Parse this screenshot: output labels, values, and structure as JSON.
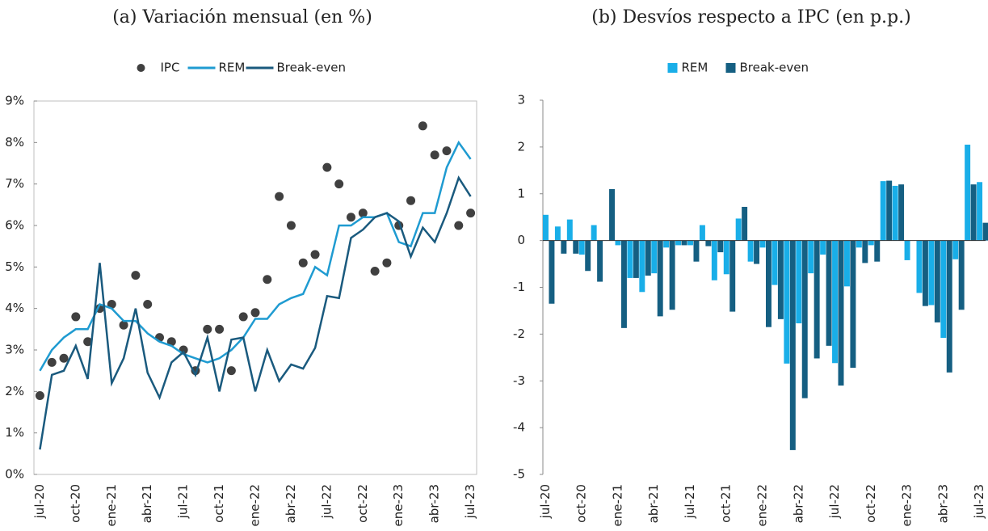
{
  "chart_data": [
    {
      "type": "line",
      "title": "(a) Variación mensual (en %)",
      "categories": [
        "jul-20",
        null,
        null,
        "oct-20",
        null,
        null,
        "ene-21",
        null,
        null,
        "abr-21",
        null,
        null,
        "jul-21",
        null,
        null,
        "oct-21",
        null,
        null,
        "ene-22",
        null,
        null,
        "abr-22",
        null,
        null,
        "jul-22",
        null,
        null,
        "oct-22",
        null,
        null,
        "ene-23",
        null,
        null,
        "abr-23",
        null,
        null,
        "jul-23"
      ],
      "series": [
        {
          "name": "IPC",
          "style": "scatter",
          "color": "#404040",
          "values": [
            1.9,
            2.7,
            2.8,
            3.8,
            3.2,
            4.0,
            4.1,
            3.6,
            4.8,
            4.1,
            3.3,
            3.2,
            3.0,
            2.5,
            3.5,
            3.5,
            2.5,
            3.8,
            3.9,
            4.7,
            6.7,
            6.0,
            5.1,
            5.3,
            7.4,
            7.0,
            6.2,
            6.3,
            4.9,
            5.1,
            6.0,
            6.6,
            8.4,
            7.7,
            7.8,
            6.0,
            6.3
          ]
        },
        {
          "name": "REM",
          "style": "line",
          "color": "#1f9bd1",
          "values": [
            2.5,
            3.0,
            3.3,
            3.5,
            3.5,
            4.1,
            4.0,
            3.7,
            3.7,
            3.4,
            3.2,
            3.1,
            2.9,
            2.8,
            2.7,
            2.8,
            3.0,
            3.3,
            3.75,
            3.75,
            4.1,
            4.25,
            4.35,
            5.0,
            4.8,
            6.0,
            6.0,
            6.2,
            6.2,
            6.3,
            5.6,
            5.5,
            6.3,
            6.3,
            7.4,
            8.0,
            7.6
          ]
        },
        {
          "name": "Break-even",
          "style": "line",
          "color": "#1a5a7e",
          "values": [
            0.6,
            2.4,
            2.5,
            3.1,
            2.3,
            5.1,
            2.2,
            2.8,
            4.0,
            2.45,
            1.85,
            2.7,
            2.95,
            2.4,
            3.3,
            2.0,
            3.25,
            3.3,
            2.0,
            3.0,
            2.25,
            2.65,
            2.55,
            3.05,
            4.3,
            4.25,
            5.7,
            5.9,
            6.2,
            6.3,
            6.1,
            5.25,
            5.95,
            5.6,
            6.3,
            7.15,
            6.7
          ]
        }
      ],
      "ylim": [
        0,
        9
      ],
      "yticks": [
        {
          "value": 0,
          "label": "0%"
        },
        {
          "value": 1,
          "label": "1%"
        },
        {
          "value": 2,
          "label": "2%"
        },
        {
          "value": 3,
          "label": "3%"
        },
        {
          "value": 4,
          "label": "4%"
        },
        {
          "value": 5,
          "label": "5%"
        },
        {
          "value": 6,
          "label": "6%"
        },
        {
          "value": 7,
          "label": "7%"
        },
        {
          "value": 8,
          "label": "8%"
        },
        {
          "value": 9,
          "label": "9%"
        }
      ],
      "legend": "top"
    },
    {
      "type": "bar",
      "title": "(b) Desvíos respecto a IPC (en p.p.)",
      "categories": [
        "jul-20",
        null,
        null,
        "oct-20",
        null,
        null,
        "ene-21",
        null,
        null,
        "abr-21",
        null,
        null,
        "jul-21",
        null,
        null,
        "oct-21",
        null,
        null,
        "ene-22",
        null,
        null,
        "abr-22",
        null,
        null,
        "jul-22",
        null,
        null,
        "oct-22",
        null,
        null,
        "ene-23",
        null,
        null,
        "abr-23",
        null,
        null,
        "jul-23"
      ],
      "series": [
        {
          "name": "REM",
          "color": "#19aee8",
          "values": [
            0.55,
            0.3,
            0.45,
            -0.3,
            0.33,
            0,
            -0.1,
            -0.8,
            -1.1,
            -0.7,
            -0.15,
            -0.1,
            -0.1,
            0.33,
            -0.85,
            -0.72,
            0.47,
            -0.45,
            -0.15,
            -0.95,
            -2.63,
            -1.77,
            -0.7,
            -0.3,
            -2.62,
            -0.98,
            -0.15,
            -0.1,
            1.27,
            1.17,
            -0.42,
            -1.12,
            -1.38,
            -2.08,
            -0.4,
            2.05,
            1.25
          ]
        },
        {
          "name": "Break-even",
          "color": "#155f82",
          "values": [
            -1.35,
            -0.28,
            -0.28,
            -0.65,
            -0.88,
            1.1,
            -1.87,
            -0.8,
            -0.75,
            -1.62,
            -1.48,
            -0.1,
            -0.45,
            -0.12,
            -0.25,
            -1.52,
            0.72,
            -0.5,
            -1.85,
            -1.68,
            -4.48,
            -3.37,
            -2.52,
            -2.25,
            -3.1,
            -2.72,
            -0.48,
            -0.45,
            1.28,
            1.2,
            0,
            -1.4,
            -1.75,
            -2.82,
            -1.48,
            1.2,
            0.38
          ]
        }
      ],
      "ylim": [
        -5,
        3
      ],
      "yticks": [
        -5,
        -4,
        -3,
        -2,
        -1,
        0,
        1,
        2,
        3
      ],
      "legend": "top"
    }
  ]
}
